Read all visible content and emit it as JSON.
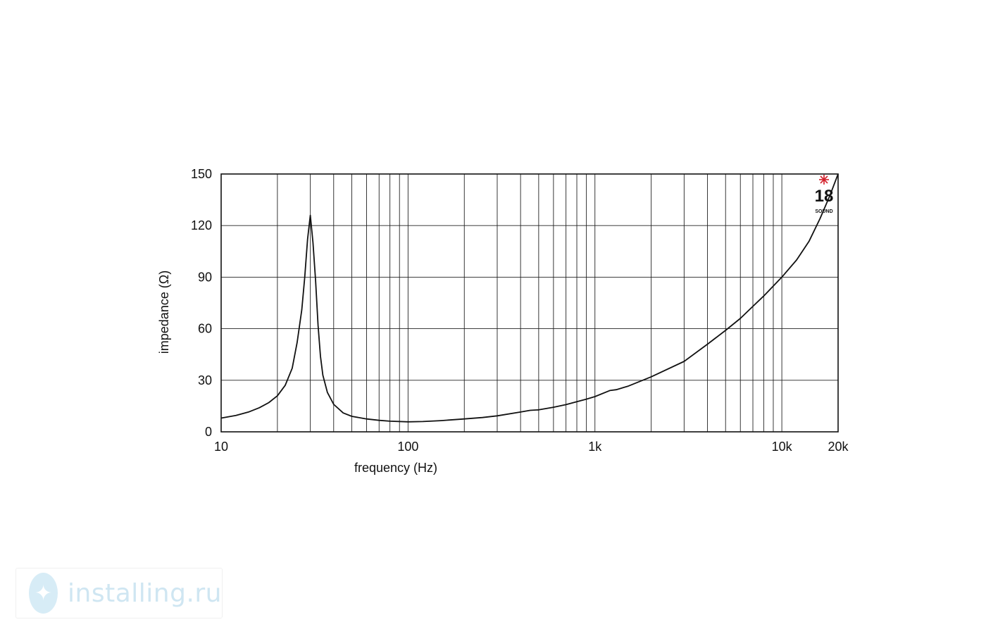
{
  "chart_data": {
    "type": "line",
    "xscale": "log",
    "xlim": [
      10,
      20000
    ],
    "ylim": [
      0,
      150
    ],
    "xlabel": "frequency (Hz)",
    "ylabel": "impedance (Ω)",
    "title": "",
    "grid": true,
    "xticks": [
      {
        "value": 10,
        "label": "10"
      },
      {
        "value": 100,
        "label": "100"
      },
      {
        "value": 1000,
        "label": "1k"
      },
      {
        "value": 10000,
        "label": "10k"
      },
      {
        "value": 20000,
        "label": "20k"
      }
    ],
    "yticks": [
      {
        "value": 0,
        "label": "0"
      },
      {
        "value": 30,
        "label": "30"
      },
      {
        "value": 60,
        "label": "60"
      },
      {
        "value": 90,
        "label": "90"
      },
      {
        "value": 120,
        "label": "120"
      },
      {
        "value": 150,
        "label": "150"
      }
    ],
    "series": [
      {
        "x": [
          10,
          12,
          14,
          16,
          18,
          20,
          22,
          24,
          25.5,
          27,
          28,
          29,
          30,
          31,
          32,
          33,
          34,
          35,
          37,
          40,
          45,
          50,
          60,
          70,
          80,
          100,
          120,
          150,
          200,
          250,
          300,
          400,
          450,
          500,
          600,
          700,
          800,
          900,
          1000,
          1200,
          1300,
          1500,
          2000,
          3000,
          4000,
          5000,
          6000,
          7000,
          8000,
          10000,
          12000,
          14000,
          16000,
          18000,
          20000
        ],
        "y": [
          8,
          9.5,
          11.5,
          14,
          17,
          21,
          27,
          37,
          52,
          71,
          90,
          112,
          126,
          110,
          88,
          62,
          44,
          33,
          23,
          16,
          11,
          9,
          7.5,
          6.7,
          6.2,
          5.8,
          6,
          6.5,
          7.5,
          8.3,
          9.3,
          11.5,
          12.5,
          12.8,
          14.3,
          15.8,
          17.5,
          19,
          20.5,
          24,
          24.5,
          26.5,
          32,
          41,
          51,
          59,
          66,
          73,
          79,
          90,
          100,
          111,
          124,
          137,
          150
        ]
      }
    ]
  },
  "logo": {
    "text": "18",
    "subtext": "SOUND",
    "accent": "#d3202a"
  },
  "watermark": {
    "text": "installing.ru",
    "color": "#cfe6f2",
    "badge_color": "#d7ecf6"
  }
}
